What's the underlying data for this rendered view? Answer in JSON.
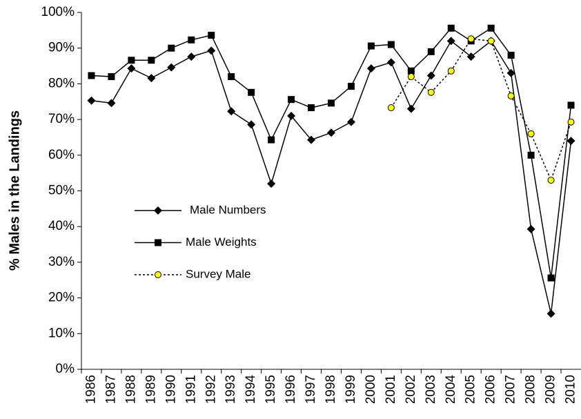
{
  "chart_data": {
    "type": "line",
    "y_label": "% Males in the Landings",
    "categories": [
      "1986",
      "1987",
      "1988",
      "1989",
      "1990",
      "1991",
      "1992",
      "1993",
      "1994",
      "1995",
      "1996",
      "1997",
      "1998",
      "1999",
      "2000",
      "2001",
      "2002",
      "2003",
      "2004",
      "2005",
      "2006",
      "2007",
      "2008",
      "2009",
      "2010"
    ],
    "series": [
      {
        "name": "Male Numbers",
        "color": "#000000",
        "marker": "diamond",
        "line_style": "solid",
        "values": [
          75.3,
          74.6,
          84.3,
          81.6,
          84.6,
          87.6,
          89.3,
          72.3,
          68.6,
          52,
          71,
          64.3,
          66.3,
          69.3,
          84.3,
          86,
          73,
          82.3,
          92,
          87.6,
          92,
          83,
          39.3,
          15.6,
          64
        ]
      },
      {
        "name": "Male Weights",
        "color": "#000000",
        "marker": "square",
        "line_style": "solid",
        "values": [
          82.3,
          82,
          86.6,
          86.6,
          90,
          92.3,
          93.6,
          82,
          77.6,
          64.3,
          75.6,
          73.3,
          74.6,
          79.3,
          90.6,
          91,
          83.6,
          89,
          95.6,
          92,
          95.6,
          88,
          60,
          25.6,
          74
        ]
      },
      {
        "name": "Survey Male",
        "color": "#ffff00",
        "marker": "circle",
        "line_style": "dotted",
        "values": [
          null,
          null,
          null,
          null,
          null,
          null,
          null,
          null,
          null,
          null,
          null,
          null,
          null,
          null,
          null,
          73.3,
          82,
          77.6,
          83.6,
          92.6,
          92,
          76.6,
          66,
          53,
          69.3
        ]
      }
    ],
    "ylim": [
      0,
      100
    ],
    "yticks": [
      {
        "value": 0,
        "label": "0%"
      },
      {
        "value": 10,
        "label": "10%"
      },
      {
        "value": 20,
        "label": "20%"
      },
      {
        "value": 30,
        "label": "30%"
      },
      {
        "value": 40,
        "label": "40%"
      },
      {
        "value": 50,
        "label": "50%"
      },
      {
        "value": 60,
        "label": "60%"
      },
      {
        "value": 70,
        "label": "70%"
      },
      {
        "value": 80,
        "label": "80%"
      },
      {
        "value": 90,
        "label": "90%"
      },
      {
        "value": 100,
        "label": "100%"
      }
    ],
    "grid": false,
    "legend": "left"
  }
}
